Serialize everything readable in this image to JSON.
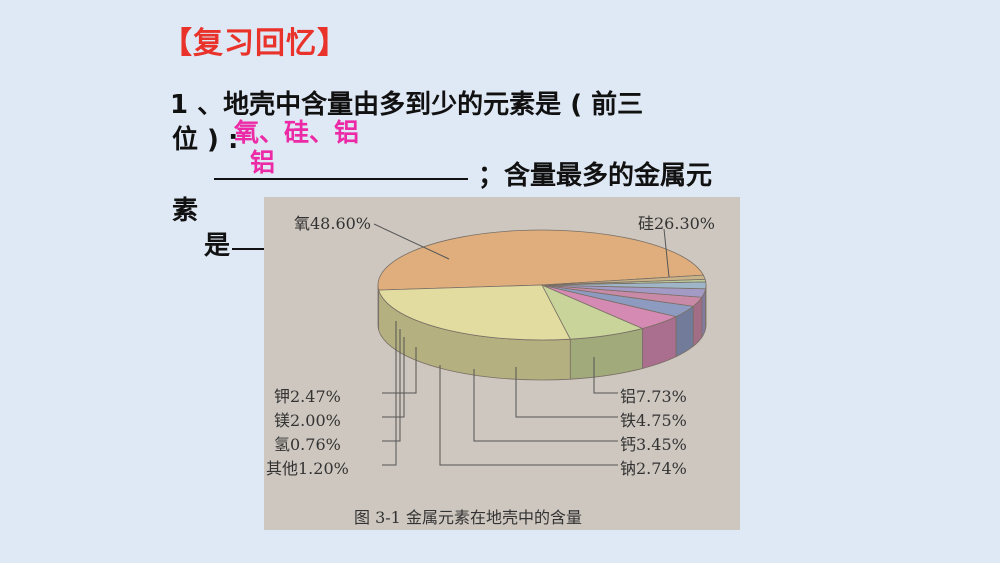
{
  "heading": "【复习回忆】",
  "question": {
    "line1": "1 、地壳中含量由多到少的元素是 ( 前三",
    "line2": "位 ) :",
    "answer_line1": "氧、硅、铝",
    "answer_line2": "铝",
    "line3": "；含量最多的金属元",
    "line4": "素",
    "line5": "是"
  },
  "chart_data": {
    "type": "pie",
    "title": "",
    "caption": "图 3-1    金属元素在地壳中的含量",
    "slices": [
      {
        "name": "氧",
        "value": 48.6,
        "label": "氧48.60%",
        "color": "#dfae7c"
      },
      {
        "name": "硅",
        "value": 26.3,
        "label": "硅26.30%",
        "color": "#e2dca0"
      },
      {
        "name": "铝",
        "value": 7.73,
        "label": "铝7.73%",
        "color": "#c8d49a"
      },
      {
        "name": "铁",
        "value": 4.75,
        "label": "铁4.75%",
        "color": "#d48ab2"
      },
      {
        "name": "钙",
        "value": 3.45,
        "label": "钙3.45%",
        "color": "#8e9bc0"
      },
      {
        "name": "钠",
        "value": 2.74,
        "label": "钠2.74%",
        "color": "#c98aa8"
      },
      {
        "name": "钾",
        "value": 2.47,
        "label": "钾2.47%",
        "color": "#a49ac6"
      },
      {
        "name": "镁",
        "value": 2.0,
        "label": "镁2.00%",
        "color": "#9fb6c9"
      },
      {
        "name": "氢",
        "value": 0.76,
        "label": "氢0.76%",
        "color": "#b9c99a"
      },
      {
        "name": "其他",
        "value": 1.2,
        "label": "其他1.20%",
        "color": "#c9b48a"
      }
    ]
  }
}
